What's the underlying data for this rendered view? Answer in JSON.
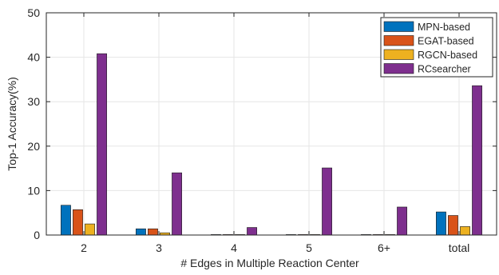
{
  "chart_data": {
    "type": "bar",
    "title": "",
    "xlabel": "# Edges in Multiple Reaction Center",
    "ylabel": "Top-1 Accuracy(%)",
    "ylim": [
      0,
      50
    ],
    "yticks": [
      "0",
      "10",
      "20",
      "30",
      "40",
      "50"
    ],
    "grid": true,
    "legend_position": "top-right",
    "categories": [
      "2",
      "3",
      "4",
      "5",
      "6+",
      "total"
    ],
    "series": [
      {
        "name": "MPN-based",
        "color": "#0072BD",
        "values": [
          6.7,
          1.4,
          0.1,
          0.1,
          0.1,
          5.2
        ]
      },
      {
        "name": "EGAT-based",
        "color": "#D95319",
        "values": [
          5.7,
          1.4,
          0.0,
          0.0,
          0.0,
          4.4
        ]
      },
      {
        "name": "RGCN-based",
        "color": "#EDB120",
        "values": [
          2.5,
          0.5,
          0.0,
          0.0,
          0.0,
          1.9
        ]
      },
      {
        "name": "RCsearcher",
        "color": "#7E2F8E",
        "values": [
          40.8,
          14.0,
          1.7,
          15.1,
          6.3,
          33.6
        ]
      }
    ]
  }
}
